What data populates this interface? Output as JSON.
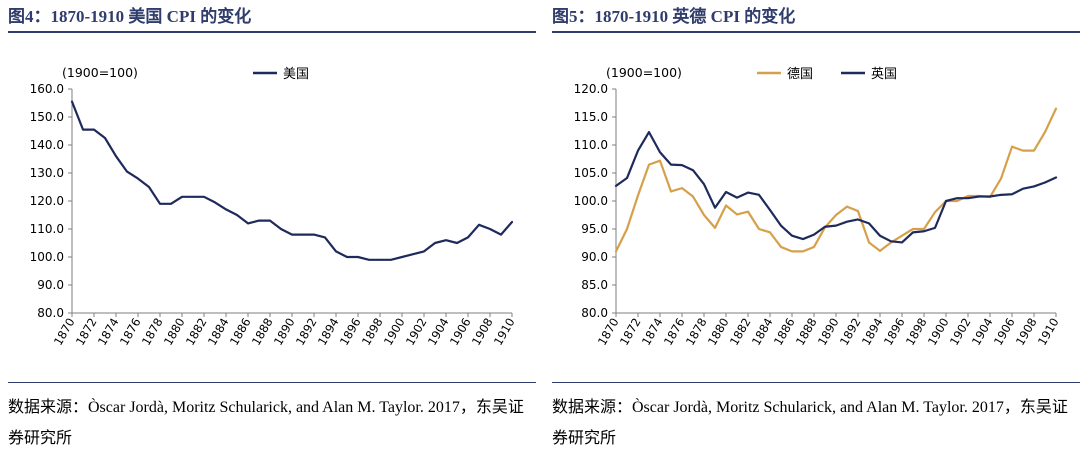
{
  "figures": [
    {
      "title": "图4：1870-1910 美国 CPI 的变化",
      "source": "数据来源：Òscar Jordà, Moritz Schularick, and Alan M. Taylor. 2017，东吴证券研究所"
    },
    {
      "title": "图5：1870-1910 英德 CPI 的变化",
      "source": "数据来源：Òscar Jordà, Moritz Schularick, and Alan M. Taylor. 2017，东吴证券研究所"
    }
  ],
  "chart_data": [
    {
      "type": "line",
      "unit_label": "(1900=100)",
      "ylim": [
        80,
        160
      ],
      "yticks": [
        "80.0",
        "90.0",
        "100.0",
        "110.0",
        "120.0",
        "130.0",
        "140.0",
        "150.0",
        "160.0"
      ],
      "xtick_labels": [
        "1870",
        "1872",
        "1874",
        "1876",
        "1878",
        "1880",
        "1882",
        "1884",
        "1886",
        "1888",
        "1890",
        "1892",
        "1894",
        "1896",
        "1898",
        "1900",
        "1902",
        "1904",
        "1906",
        "1908",
        "1910"
      ],
      "x": [
        1870,
        1871,
        1872,
        1873,
        1874,
        1875,
        1876,
        1877,
        1878,
        1879,
        1880,
        1881,
        1882,
        1883,
        1884,
        1885,
        1886,
        1887,
        1888,
        1889,
        1890,
        1891,
        1892,
        1893,
        1894,
        1895,
        1896,
        1897,
        1898,
        1899,
        1900,
        1901,
        1902,
        1903,
        1904,
        1905,
        1906,
        1907,
        1908,
        1909,
        1910
      ],
      "legend_position": "top-center",
      "grid": false,
      "series": [
        {
          "name": "美国",
          "color": "#1f2a5c",
          "values": [
            155.5,
            145.5,
            145.5,
            142.5,
            136,
            130.5,
            128,
            125,
            119,
            119,
            121.5,
            121.5,
            121.5,
            119.5,
            117,
            115,
            112,
            113,
            113,
            110,
            108,
            108,
            108,
            107,
            102,
            100,
            100,
            99,
            99,
            99,
            100,
            101,
            102,
            105,
            106,
            105,
            107,
            111.5,
            110,
            108,
            112.5
          ]
        }
      ]
    },
    {
      "type": "line",
      "unit_label": "(1900=100)",
      "ylim": [
        80,
        120
      ],
      "yticks": [
        "80.0",
        "85.0",
        "90.0",
        "95.0",
        "100.0",
        "105.0",
        "110.0",
        "115.0",
        "120.0"
      ],
      "xtick_labels": [
        "1870",
        "1872",
        "1874",
        "1876",
        "1878",
        "1880",
        "1882",
        "1884",
        "1886",
        "1888",
        "1890",
        "1892",
        "1894",
        "1896",
        "1898",
        "1900",
        "1902",
        "1904",
        "1906",
        "1908",
        "1910"
      ],
      "x": [
        1870,
        1871,
        1872,
        1873,
        1874,
        1875,
        1876,
        1877,
        1878,
        1879,
        1880,
        1881,
        1882,
        1883,
        1884,
        1885,
        1886,
        1887,
        1888,
        1889,
        1890,
        1891,
        1892,
        1893,
        1894,
        1895,
        1896,
        1897,
        1898,
        1899,
        1900,
        1901,
        1902,
        1903,
        1904,
        1905,
        1906,
        1907,
        1908,
        1909,
        1910
      ],
      "legend_position": "top-center",
      "grid": false,
      "series": [
        {
          "name": "德国",
          "color": "#d6a04a",
          "values": [
            91,
            95,
            101,
            106.5,
            107.2,
            101.7,
            102.3,
            100.8,
            97.5,
            95.2,
            99.2,
            97.6,
            98.1,
            95,
            94.4,
            91.8,
            91,
            91,
            91.8,
            95.3,
            97.5,
            99,
            98.2,
            92.6,
            91.1,
            92.6,
            93.8,
            95,
            95,
            98,
            100,
            100,
            100.9,
            100.9,
            100.7,
            104,
            109.7,
            109,
            109,
            112.3,
            116.5
          ]
        },
        {
          "name": "英国",
          "color": "#1f2a5c",
          "values": [
            102.7,
            104.1,
            109,
            112.3,
            108.7,
            106.5,
            106.4,
            105.5,
            103,
            98.8,
            101.6,
            100.6,
            101.5,
            101.1,
            98.4,
            95.6,
            93.8,
            93.2,
            94,
            95.4,
            95.6,
            96.3,
            96.7,
            96,
            93.8,
            92.8,
            92.6,
            94.4,
            94.6,
            95.2,
            100,
            100.5,
            100.5,
            100.8,
            100.8,
            101.1,
            101.2,
            102.2,
            102.6,
            103.3,
            104.2
          ]
        }
      ]
    }
  ]
}
